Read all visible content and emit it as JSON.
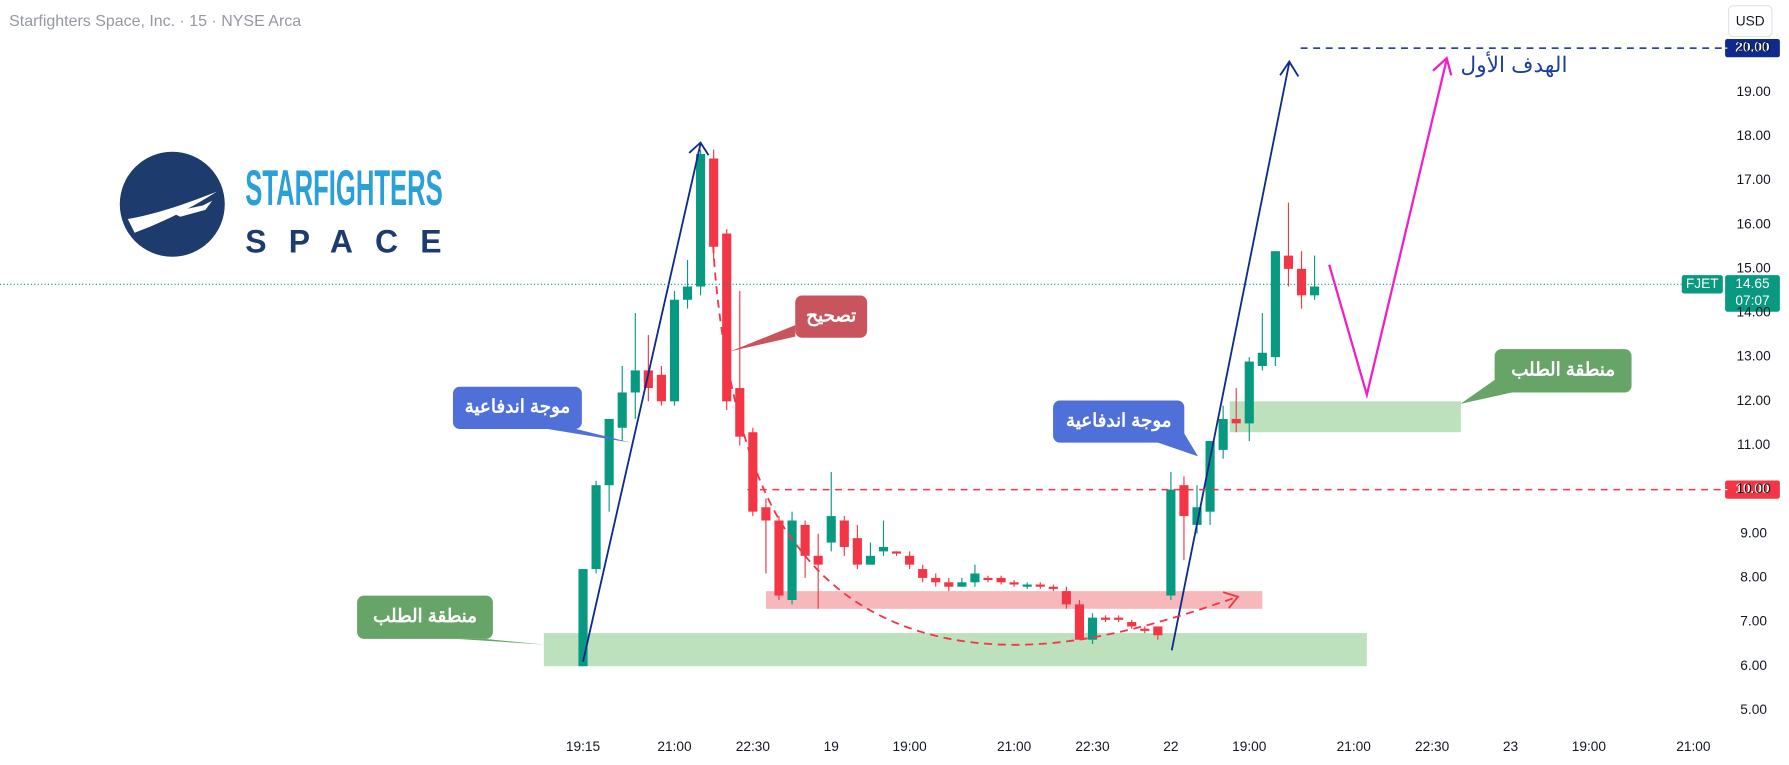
{
  "header": {
    "title": "Starfighters Space, Inc. · 15 · NYSE Arca",
    "currency": "USD"
  },
  "logo": {
    "line1": "STARFIGHTERS",
    "line2": "SPACE"
  },
  "chart_data": {
    "type": "candlestick",
    "x": [
      0,
      1,
      2,
      3,
      4,
      5,
      6,
      7,
      8,
      9,
      10,
      11,
      12,
      13,
      14,
      15,
      16,
      17,
      18,
      19,
      20,
      21,
      22,
      23,
      24,
      25,
      26,
      27,
      28,
      29,
      30,
      31,
      32,
      33,
      34,
      35,
      36,
      37,
      38,
      39,
      40,
      41,
      42,
      43,
      44,
      45,
      46,
      47,
      48,
      49,
      50,
      51,
      52,
      53,
      54,
      55,
      56
    ],
    "open": [
      6.0,
      8.2,
      10.1,
      11.4,
      12.2,
      12.7,
      12.6,
      12.0,
      14.3,
      14.6,
      17.5,
      15.8,
      12.3,
      11.3,
      9.6,
      9.3,
      7.5,
      9.2,
      8.5,
      8.8,
      9.3,
      8.9,
      8.3,
      8.6,
      8.6,
      8.5,
      8.2,
      8.0,
      7.9,
      7.8,
      7.9,
      8.0,
      8.0,
      7.9,
      7.8,
      7.85,
      7.8,
      7.7,
      7.4,
      6.6,
      7.1,
      7.1,
      7.0,
      6.85,
      6.9,
      7.6,
      10.1,
      9.2,
      9.5,
      10.9,
      11.6,
      11.5,
      12.8,
      13.0,
      15.3,
      15.0,
      14.4
    ],
    "high": [
      8.2,
      10.2,
      11.6,
      12.8,
      14.0,
      13.5,
      12.8,
      14.5,
      15.2,
      17.7,
      17.7,
      15.9,
      14.5,
      11.4,
      9.8,
      9.4,
      9.5,
      9.3,
      9.0,
      10.4,
      9.4,
      9.2,
      8.8,
      9.3,
      8.6,
      8.6,
      8.3,
      8.1,
      8.0,
      8.0,
      8.3,
      8.05,
      8.05,
      7.95,
      7.9,
      7.9,
      7.85,
      7.8,
      7.5,
      7.2,
      7.15,
      7.15,
      7.05,
      6.9,
      6.9,
      10.4,
      10.3,
      10.1,
      11.1,
      11.9,
      12.3,
      13.0,
      14.0,
      15.4,
      16.5,
      15.4,
      15.3
    ],
    "low": [
      6.0,
      8.1,
      9.5,
      11.1,
      11.6,
      12.0,
      11.9,
      11.9,
      14.1,
      14.4,
      15.2,
      11.8,
      11.0,
      9.4,
      8.1,
      7.5,
      7.4,
      8.0,
      7.3,
      8.6,
      8.5,
      8.2,
      8.3,
      8.5,
      8.5,
      8.2,
      7.9,
      7.8,
      7.7,
      7.8,
      7.8,
      7.9,
      7.85,
      7.8,
      7.75,
      7.75,
      7.7,
      7.3,
      6.6,
      6.5,
      7.0,
      7.0,
      6.85,
      6.75,
      6.6,
      7.5,
      8.4,
      9.0,
      9.2,
      10.7,
      11.3,
      11.1,
      12.7,
      12.8,
      14.6,
      14.1,
      14.3
    ],
    "close": [
      8.2,
      10.1,
      11.6,
      12.2,
      12.7,
      12.3,
      12.0,
      14.3,
      14.6,
      17.6,
      15.5,
      12.0,
      11.2,
      9.5,
      9.3,
      7.6,
      9.3,
      8.5,
      8.3,
      9.4,
      8.7,
      8.3,
      8.5,
      8.7,
      8.55,
      8.3,
      8.0,
      7.9,
      7.8,
      7.9,
      8.1,
      7.95,
      7.9,
      7.85,
      7.85,
      7.8,
      7.75,
      7.4,
      6.6,
      7.1,
      7.05,
      7.05,
      6.9,
      6.8,
      6.7,
      10.0,
      9.4,
      9.6,
      11.1,
      11.6,
      11.5,
      12.9,
      13.1,
      15.4,
      15.0,
      14.4,
      14.6
    ],
    "up_color": "#089981",
    "down_color": "#f23645",
    "ylim": [
      4.55,
      21.09
    ],
    "yticks": [
      {
        "value": 5,
        "label": "5.00"
      },
      {
        "value": 6,
        "label": "6.00"
      },
      {
        "value": 7,
        "label": "7.00"
      },
      {
        "value": 8,
        "label": "8.00"
      },
      {
        "value": 9,
        "label": "9.00"
      },
      {
        "value": 10,
        "label": "10.00"
      },
      {
        "value": 11,
        "label": "11.00"
      },
      {
        "value": 12,
        "label": "12.00"
      },
      {
        "value": 13,
        "label": "13.00"
      },
      {
        "value": 14,
        "label": "14.00"
      },
      {
        "value": 15,
        "label": "15.00"
      },
      {
        "value": 16,
        "label": "16.00"
      },
      {
        "value": 17,
        "label": "17.00"
      },
      {
        "value": 18,
        "label": "18.00"
      },
      {
        "value": 19,
        "label": "19.00"
      },
      {
        "value": 20,
        "label": "20.00"
      }
    ],
    "xlim": [
      -44.63,
      87.25
    ],
    "xticks": [
      {
        "value": 0,
        "label": "19:15"
      },
      {
        "value": 7,
        "label": "21:00"
      },
      {
        "value": 13,
        "label": "22:30"
      },
      {
        "value": 19,
        "label": "19"
      },
      {
        "value": 25,
        "label": "19:00"
      },
      {
        "value": 33,
        "label": "21:00"
      },
      {
        "value": 39,
        "label": "22:30"
      },
      {
        "value": 45,
        "label": "22"
      },
      {
        "value": 51,
        "label": "19:00"
      },
      {
        "value": 59,
        "label": "21:00"
      },
      {
        "value": 65,
        "label": "22:30"
      },
      {
        "value": 71,
        "label": "23"
      },
      {
        "value": 77,
        "label": "19:00"
      },
      {
        "value": 85,
        "label": "21:00"
      }
    ],
    "grid": false,
    "levels": [
      {
        "value": 10,
        "label": "10.00",
        "color": "#f23645"
      },
      {
        "value": 20,
        "label": "20.00",
        "color": "#0d2a8c"
      }
    ],
    "last_price": {
      "value": 14.65,
      "label": "14.65",
      "symbol": "FJET",
      "countdown": "07:07",
      "color": "#089981"
    },
    "zones": [
      {
        "low": 6.0,
        "high": 6.75,
        "from": -3,
        "to": 60,
        "color": "#b9dfb9"
      },
      {
        "low": 7.3,
        "high": 7.7,
        "from": 14,
        "to": 52,
        "color": "#f7b4b8"
      },
      {
        "low": 11.3,
        "high": 12.0,
        "from": 49.5,
        "to": 67.2,
        "color": "#b9dfb9"
      }
    ],
    "annotations": [
      {
        "text": "منطقة الطلب",
        "color": "#67a468"
      },
      {
        "text": "موجة اندفاعية",
        "color": "#4f6fd9"
      },
      {
        "text": "تصحيح",
        "color": "#c8545d"
      },
      {
        "text": "موجة اندفاعية",
        "color": "#4f6fd9"
      },
      {
        "text": "منطقة الطلب",
        "color": "#67a468"
      },
      {
        "text": "الهدف الأول",
        "color": "#1c3ea0"
      }
    ]
  }
}
